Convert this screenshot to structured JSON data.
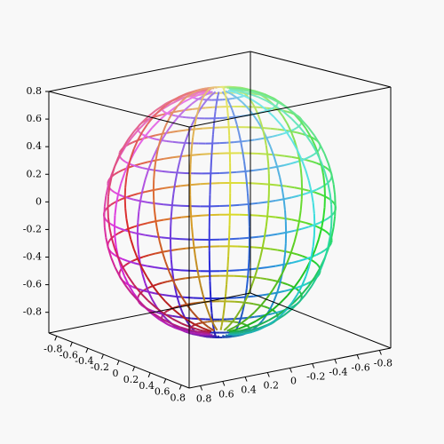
{
  "chart_data": {
    "type": "surface3d",
    "xlim": [
      -0.9,
      0.9
    ],
    "ylim": [
      -0.9,
      0.9
    ],
    "zlim": [
      -0.95,
      0.8
    ],
    "xticks": [
      -0.8,
      -0.6,
      -0.4,
      -0.2,
      0,
      0.2,
      0.4,
      0.6,
      0.8
    ],
    "yticks": [
      0.8,
      0.6,
      0.4,
      0.2,
      0,
      -0.2,
      -0.4,
      -0.6,
      -0.8
    ],
    "zticks": [
      0.8,
      0.6,
      0.4,
      0.2,
      0,
      -0.2,
      -0.4,
      -0.6,
      -0.8
    ],
    "box": true
  }
}
